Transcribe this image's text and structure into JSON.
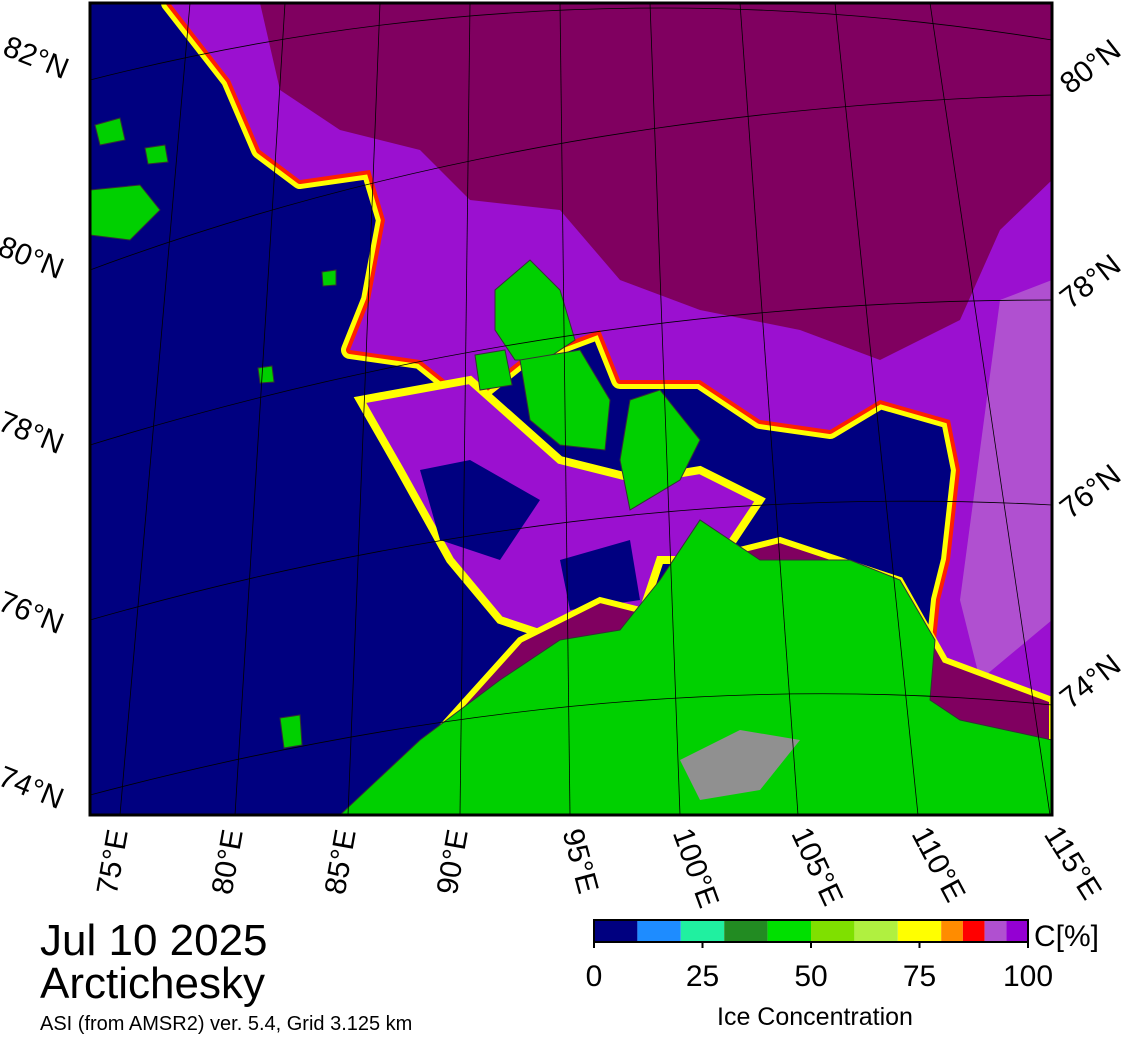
{
  "map": {
    "date": "Jul 10 2025",
    "region": "Arctichesky",
    "source": "ASI (from AMSR2) ver. 5.4,  Grid 3.125 km",
    "lat_labels_left": [
      "82°N",
      "80°N",
      "78°N",
      "76°N",
      "74°N"
    ],
    "lat_labels_right": [
      "80°N",
      "78°N",
      "76°N",
      "74°N"
    ],
    "lon_labels": [
      "75°E",
      "80°E",
      "85°E",
      "90°E",
      "95°E",
      "100°E",
      "105°E",
      "110°E",
      "115°E"
    ]
  },
  "colorbar": {
    "title": "Ice Concentration",
    "unit": "C[%]",
    "bounds": [
      0,
      10,
      20,
      30,
      40,
      50,
      60,
      70,
      80,
      85,
      90,
      95,
      100
    ],
    "colors": [
      "#000080",
      "#1e8cff",
      "#20f0a0",
      "#228b22",
      "#00e000",
      "#7fe000",
      "#b0f040",
      "#ffff00",
      "#ff8c00",
      "#ff0000",
      "#b050d0",
      "#9400d3"
    ],
    "ticks": [
      0,
      25,
      50,
      75,
      100
    ]
  }
}
